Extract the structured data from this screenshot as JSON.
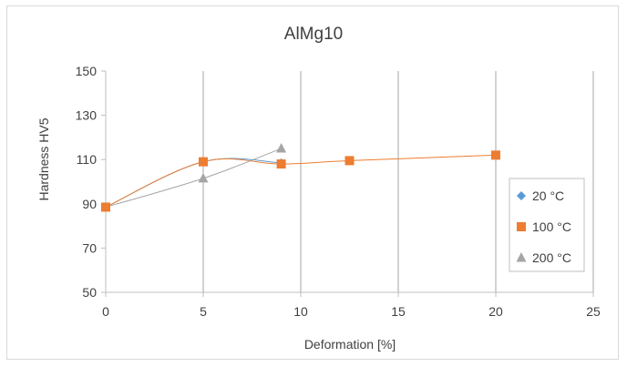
{
  "chart_data": {
    "type": "scatter",
    "title": "AlMg10",
    "xlabel": "Deformation [%]",
    "ylabel": "Hardness HV5",
    "xlim": [
      0,
      25
    ],
    "ylim": [
      50,
      150
    ],
    "xticks": [
      0,
      5,
      10,
      15,
      20,
      25
    ],
    "yticks": [
      50,
      70,
      90,
      110,
      130,
      150
    ],
    "grid": "vertical",
    "legend_position": "right",
    "series": [
      {
        "name": "20 °C",
        "marker": "diamond",
        "color": "#5B9BD5",
        "x": [
          0,
          5,
          9
        ],
        "y": [
          88.5,
          109,
          108.5
        ]
      },
      {
        "name": "100 °C",
        "marker": "square",
        "color": "#ED7D31",
        "x": [
          0,
          5,
          9,
          12.5,
          20
        ],
        "y": [
          88.5,
          109,
          108,
          109.5,
          112
        ]
      },
      {
        "name": "200 °C",
        "marker": "triangle",
        "color": "#A5A5A5",
        "x": [
          0,
          5,
          9
        ],
        "y": [
          88.5,
          101.5,
          115
        ]
      }
    ]
  }
}
